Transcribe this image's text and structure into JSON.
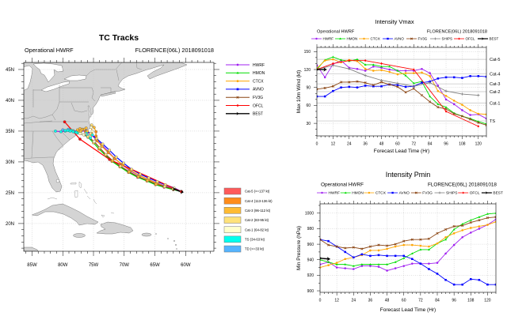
{
  "chart_data": [
    {
      "type": "map",
      "title": "TC Tracks",
      "subtitle_left": "Operational HWRF",
      "subtitle_right": "FLORENCE(06L) 2018091018",
      "lon_range": [
        -86.35,
        -55.4
      ],
      "lat_range": [
        15.5,
        46.15
      ],
      "grid": true,
      "legend_placement": "right",
      "lat_ticks": [
        {
          "value": 45,
          "label": "45N"
        },
        {
          "value": 40,
          "label": "40N"
        },
        {
          "value": 35,
          "label": "35N"
        },
        {
          "value": 30,
          "label": "30N"
        },
        {
          "value": 25,
          "label": "25N"
        },
        {
          "value": 20,
          "label": "20N"
        }
      ],
      "lon_ticks": [
        {
          "value": -85,
          "label": "85W"
        },
        {
          "value": -80,
          "label": "80W"
        },
        {
          "value": -75,
          "label": "75W"
        },
        {
          "value": -70,
          "label": "70W"
        },
        {
          "value": -65,
          "label": "65W"
        },
        {
          "value": -60,
          "label": "60W"
        }
      ],
      "tracks": [
        {
          "name": "HWRF",
          "color": "#a020f0",
          "marker": "circle",
          "points": [
            [
              25.2,
              -60.7
            ],
            [
              25.7,
              -61.9
            ],
            [
              26.1,
              -63.4
            ],
            [
              26.6,
              -64.7
            ],
            [
              27.2,
              -66.1
            ],
            [
              27.8,
              -67.6
            ],
            [
              28.6,
              -69.1
            ],
            [
              29.6,
              -70.4
            ],
            [
              30.6,
              -71.6
            ],
            [
              31.7,
              -72.6
            ],
            [
              32.8,
              -73.7
            ],
            [
              33.7,
              -74.6
            ],
            [
              34.5,
              -75.5
            ],
            [
              34.9,
              -76.3
            ],
            [
              35.1,
              -77.0
            ],
            [
              35.0,
              -77.6
            ],
            [
              35.1,
              -78.3
            ],
            [
              35.1,
              -79.0
            ],
            [
              35.0,
              -79.6
            ],
            [
              34.9,
              -80.3
            ],
            [
              35.0,
              -81.2
            ]
          ]
        },
        {
          "name": "HMON",
          "color": "#00dd00",
          "marker": "triangle",
          "points": [
            [
              25.2,
              -60.7
            ],
            [
              25.5,
              -62.0
            ],
            [
              25.9,
              -63.5
            ],
            [
              26.3,
              -64.9
            ],
            [
              26.9,
              -66.3
            ],
            [
              27.5,
              -67.8
            ],
            [
              28.3,
              -69.3
            ],
            [
              29.2,
              -70.7
            ],
            [
              30.1,
              -72.0
            ],
            [
              31.1,
              -73.1
            ],
            [
              32.1,
              -74.1
            ],
            [
              33.1,
              -75.0
            ],
            [
              34.0,
              -75.9
            ],
            [
              34.4,
              -76.5
            ],
            [
              34.6,
              -77.0
            ],
            [
              34.7,
              -77.5
            ],
            [
              34.8,
              -77.9
            ],
            [
              35.0,
              -78.3
            ],
            [
              35.1,
              -78.6
            ],
            [
              35.2,
              -78.9
            ],
            [
              35.3,
              -79.1
            ]
          ]
        },
        {
          "name": "CTCX",
          "color": "#ffa500",
          "marker": "circle",
          "points": [
            [
              25.2,
              -60.7
            ],
            [
              25.6,
              -61.9
            ],
            [
              26.0,
              -63.3
            ],
            [
              26.5,
              -64.6
            ],
            [
              27.1,
              -66.0
            ],
            [
              27.8,
              -67.5
            ],
            [
              28.6,
              -68.9
            ],
            [
              29.5,
              -70.2
            ],
            [
              30.5,
              -71.5
            ],
            [
              31.5,
              -72.6
            ],
            [
              32.5,
              -73.6
            ],
            [
              33.4,
              -74.4
            ],
            [
              34.2,
              -74.6
            ],
            [
              34.9,
              -74.6
            ],
            [
              35.6,
              -74.9
            ],
            [
              36.0,
              -75.3
            ],
            [
              35.6,
              -75.4
            ],
            [
              35.0,
              -75.2
            ],
            [
              34.4,
              -75.2
            ],
            [
              33.9,
              -75.5
            ],
            [
              34.3,
              -76.0
            ],
            [
              34.8,
              -76.1
            ]
          ]
        },
        {
          "name": "AVNO",
          "color": "#0000ff",
          "marker": "square",
          "points": [
            [
              25.2,
              -60.7
            ],
            [
              25.8,
              -61.9
            ],
            [
              26.3,
              -63.3
            ],
            [
              26.8,
              -64.6
            ],
            [
              27.4,
              -66.0
            ],
            [
              28.0,
              -67.4
            ],
            [
              28.8,
              -68.8
            ],
            [
              29.8,
              -70.1
            ],
            [
              30.8,
              -71.3
            ],
            [
              31.9,
              -72.4
            ],
            [
              32.9,
              -73.5
            ],
            [
              33.8,
              -74.5
            ],
            [
              34.6,
              -75.5
            ],
            [
              35.0,
              -76.0
            ],
            [
              35.3,
              -76.5
            ],
            [
              35.5,
              -76.2
            ],
            [
              35.3,
              -76.8
            ],
            [
              35.0,
              -77.3
            ],
            [
              35.2,
              -77.6
            ],
            [
              35.4,
              -77.2
            ],
            [
              35.2,
              -76.9
            ],
            [
              35.0,
              -77.1
            ]
          ]
        },
        {
          "name": "FV3G",
          "color": "#8b4513",
          "marker": "x",
          "points": [
            [
              25.2,
              -60.7
            ],
            [
              25.6,
              -62.0
            ],
            [
              26.0,
              -63.4
            ],
            [
              26.4,
              -64.8
            ],
            [
              27.0,
              -66.2
            ],
            [
              27.6,
              -67.7
            ],
            [
              28.4,
              -69.2
            ],
            [
              29.3,
              -70.6
            ],
            [
              30.2,
              -71.9
            ],
            [
              31.2,
              -73.0
            ],
            [
              32.3,
              -74.0
            ],
            [
              33.3,
              -74.9
            ],
            [
              34.1,
              -75.9
            ],
            [
              34.4,
              -76.6
            ],
            [
              34.6,
              -77.2
            ],
            [
              34.8,
              -77.8
            ],
            [
              34.9,
              -78.3
            ],
            [
              35.0,
              -78.8
            ],
            [
              35.1,
              -79.2
            ],
            [
              35.1,
              -79.6
            ],
            [
              35.2,
              -80.0
            ]
          ]
        },
        {
          "name": "OFCL",
          "color": "#ff0000",
          "marker": "diamond",
          "points": [
            [
              25.2,
              -60.7
            ],
            [
              30.4,
              -72.4
            ],
            [
              33.7,
              -77.2
            ],
            [
              36.5,
              -79.7
            ]
          ]
        },
        {
          "name": "BEST",
          "color": "#000000",
          "marker": "arrow",
          "points": [
            [
              25.1,
              -60.6
            ],
            [
              25.6,
              -61.9
            ]
          ]
        }
      ],
      "category_legend": [
        {
          "label": "Cat-5 (>=137 kt)",
          "color": "#ff5a5a",
          "min_kt": 137
        },
        {
          "label": "Cat-4 (113-136 kt)",
          "color": "#ff8c1a",
          "min_kt": 113
        },
        {
          "label": "Cat-3 (96-112 kt)",
          "color": "#ffbb33",
          "min_kt": 96
        },
        {
          "label": "Cat-2 (83-95 kt)",
          "color": "#ffe27a",
          "min_kt": 83
        },
        {
          "label": "Cat-1 (64-82 kt)",
          "color": "#ffffcc",
          "min_kt": 64
        },
        {
          "label": "TS (34-63 kt)",
          "color": "#00ffee",
          "min_kt": 34
        },
        {
          "label": "TD (<=33 kt)",
          "color": "#55b4ff",
          "min_kt": 0
        }
      ]
    },
    {
      "type": "line",
      "title": "Intensity Vmax",
      "subtitle_left": "Operational HWRF",
      "subtitle_right": "FLORENCE(06L) 2018091018",
      "xlabel": "Forecast Lead Time (Hr)",
      "ylabel": "Max 10m Wind (kt)",
      "xlim": [
        0,
        126
      ],
      "ylim": [
        9,
        157
      ],
      "xticks": [
        0,
        12,
        24,
        36,
        48,
        60,
        72,
        84,
        96,
        108,
        120
      ],
      "yticks": [
        30,
        60,
        90,
        120,
        150
      ],
      "grid": true,
      "legend_placement": "top",
      "thresholds": [
        {
          "label": "Cat-5",
          "value": 137
        },
        {
          "label": "Cat-4",
          "value": 113
        },
        {
          "label": "Cat-3",
          "value": 96
        },
        {
          "label": "Cat-2",
          "value": 83
        },
        {
          "label": "Cat-1",
          "value": 64
        },
        {
          "label": "TS",
          "value": 34
        }
      ],
      "x": [
        0,
        6,
        12,
        18,
        24,
        30,
        36,
        42,
        48,
        54,
        60,
        66,
        72,
        78,
        84,
        90,
        96,
        102,
        108,
        114,
        120,
        126
      ],
      "series": [
        {
          "name": "HWRF",
          "color": "#a020f0",
          "marker": "circle",
          "y": [
            127,
            107,
            129,
            135,
            123,
            121,
            118,
            125,
            123,
            120,
            118,
            118,
            118,
            121,
            114,
            93,
            70,
            62,
            52,
            44,
            45,
            38
          ]
        },
        {
          "name": "HMON",
          "color": "#00dd00",
          "marker": "triangle",
          "y": [
            120,
            136,
            141,
            136,
            134,
            137,
            128,
            128,
            125,
            125,
            118,
            110,
            97,
            100,
            75,
            62,
            57,
            47,
            42,
            38,
            33,
            29
          ]
        },
        {
          "name": "CTCX",
          "color": "#ffa500",
          "marker": "circle",
          "y": [
            122,
            135,
            137,
            132,
            136,
            134,
            121,
            118,
            119,
            116,
            112,
            114,
            114,
            115,
            109,
            84,
            76,
            68,
            61,
            52,
            46,
            45
          ]
        },
        {
          "name": "AVNO",
          "color": "#0000ff",
          "marker": "square",
          "y": [
            75,
            75,
            84,
            90,
            91,
            90,
            93,
            92,
            92,
            95,
            94,
            91,
            92,
            98,
            100,
            105,
            107,
            107,
            106,
            109,
            109,
            108
          ]
        },
        {
          "name": "FV3G",
          "color": "#8b4513",
          "marker": "x",
          "y": [
            87,
            89,
            92,
            99,
            99,
            100,
            98,
            94,
            99,
            95,
            91,
            82,
            88,
            77,
            66,
            57,
            54,
            46,
            42,
            37,
            31,
            27
          ]
        },
        {
          "name": "SHIPS",
          "color": "#808080",
          "marker": "plus",
          "x": [
            0,
            12,
            24,
            36,
            48,
            60,
            72,
            84,
            96,
            108,
            120
          ],
          "y": [
            120,
            127,
            121,
            110,
            102,
            97,
            92,
            98,
            84,
            79,
            77
          ]
        },
        {
          "name": "OFCL",
          "color": "#ff0000",
          "marker": "diamond",
          "x": [
            0,
            12,
            24,
            36,
            48,
            72,
            96,
            120
          ],
          "y": [
            120,
            130,
            135,
            135,
            130,
            120,
            50,
            25
          ]
        },
        {
          "name": "BEST",
          "color": "#000000",
          "marker": "arrow",
          "x": [
            0,
            6
          ],
          "y": [
            120,
            120
          ]
        }
      ]
    },
    {
      "type": "line",
      "title": "Intensity Pmin",
      "subtitle_left": "Operational HWRF",
      "subtitle_right": "FLORENCE(06L) 2018091018",
      "xlabel": "Forecast Lead Time (Hr)",
      "ylabel": "Min Pressure (hPa)",
      "xlim": [
        0,
        126
      ],
      "ylim": [
        898,
        1012
      ],
      "xticks": [
        0,
        12,
        24,
        36,
        48,
        60,
        72,
        84,
        96,
        108,
        120
      ],
      "yticks": [
        900,
        920,
        940,
        960,
        980,
        1000
      ],
      "grid": true,
      "legend_placement": "top",
      "x": [
        0,
        6,
        12,
        18,
        24,
        30,
        36,
        42,
        48,
        54,
        60,
        66,
        72,
        78,
        84,
        90,
        96,
        102,
        108,
        114,
        120,
        126
      ],
      "series": [
        {
          "name": "HWRF",
          "color": "#a020f0",
          "marker": "circle",
          "y": [
            934,
            937,
            930,
            929,
            928,
            932,
            932,
            931,
            926,
            929,
            932,
            935,
            935,
            935,
            936,
            948,
            959,
            969,
            975,
            980,
            985,
            992
          ]
        },
        {
          "name": "HMON",
          "color": "#00dd00",
          "marker": "triangle",
          "y": [
            940,
            937,
            934,
            934,
            932,
            934,
            934,
            934,
            934,
            937,
            942,
            948,
            953,
            953,
            961,
            966,
            979,
            986,
            991,
            995,
            999,
            1000
          ]
        },
        {
          "name": "CTCX",
          "color": "#ffa500",
          "marker": "circle",
          "y": [
            930,
            933,
            936,
            941,
            943,
            946,
            952,
            952,
            954,
            957,
            959,
            959,
            958,
            957,
            961,
            969,
            974,
            978,
            981,
            983,
            985,
            989
          ]
        },
        {
          "name": "AVNO",
          "color": "#0000ff",
          "marker": "square",
          "y": [
            966,
            964,
            957,
            950,
            943,
            947,
            945,
            946,
            945,
            945,
            945,
            941,
            935,
            928,
            922,
            914,
            908,
            908,
            915,
            914,
            908,
            908
          ]
        },
        {
          "name": "FV3G",
          "color": "#8b4513",
          "marker": "x",
          "y": [
            966,
            959,
            957,
            955,
            956,
            954,
            957,
            959,
            958,
            960,
            964,
            966,
            966,
            967,
            974,
            979,
            983,
            984,
            988,
            991,
            994,
            995
          ]
        },
        {
          "name": "SHIPS",
          "color": "#808080",
          "marker": "plus",
          "x": [],
          "y": []
        },
        {
          "name": "OFCL",
          "color": "#ff0000",
          "marker": "diamond",
          "x": [],
          "y": []
        },
        {
          "name": "BEST",
          "color": "#000000",
          "marker": "arrow",
          "x": [
            0,
            6
          ],
          "y": [
            942,
            941
          ]
        }
      ]
    }
  ]
}
